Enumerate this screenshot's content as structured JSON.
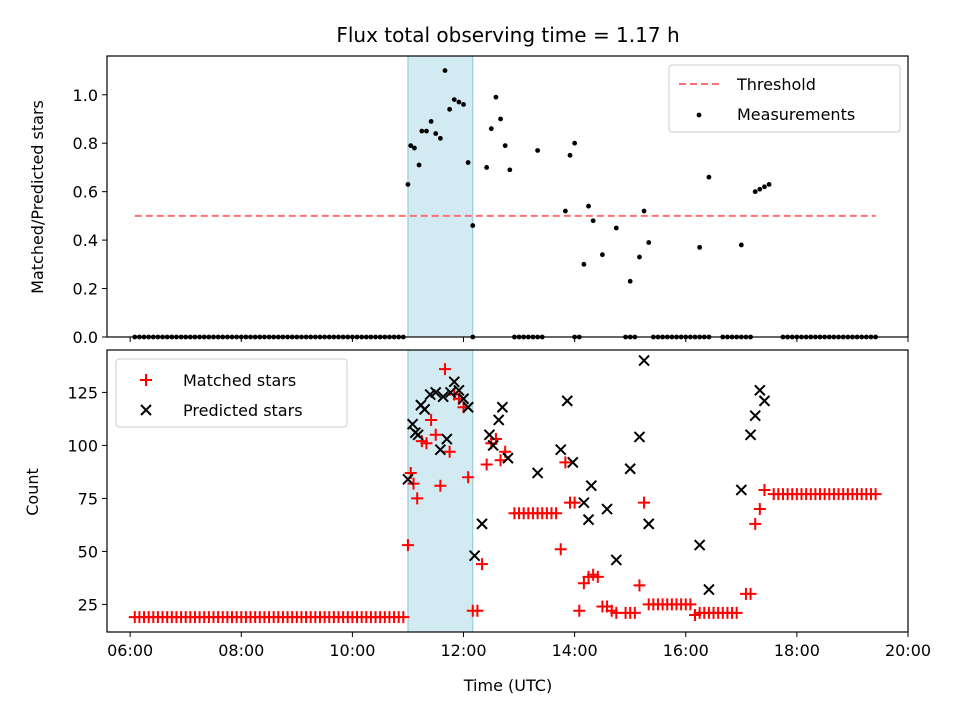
{
  "chart_data": {
    "title": "Flux total observing time = 1.17 h",
    "shared_x": {
      "xlabel": "Time (UTC)",
      "xlim": [
        "05:35",
        "20:00"
      ],
      "ticks": [
        "06:00",
        "08:00",
        "10:00",
        "12:00",
        "14:00",
        "16:00",
        "18:00",
        "20:00"
      ]
    },
    "highlight_interval": {
      "start": "11:00",
      "end": "12:10",
      "color": "#add8e6"
    },
    "panels": [
      {
        "id": "ratio",
        "type": "scatter",
        "ylabel": "Matched/Predicted stars",
        "ylim": [
          0,
          1.16
        ],
        "yticks": [
          "0.0",
          "0.2",
          "0.4",
          "0.6",
          "0.8",
          "1.0"
        ],
        "legend": {
          "placement": "upper right",
          "entries": [
            "Threshold",
            "Measurements"
          ]
        },
        "threshold": {
          "name": "Threshold",
          "value": 0.5,
          "x_range": [
            "06:05",
            "19:25"
          ],
          "color": "#ff7070",
          "style": "dashed"
        },
        "zero_series": {
          "name": "Measurements",
          "y": 0,
          "ranges": [
            [
              "06:05",
              "10:55"
            ],
            [
              "12:10",
              "12:10"
            ],
            [
              "12:55",
              "13:25"
            ],
            [
              "14:00",
              "14:05"
            ],
            [
              "14:55",
              "15:05"
            ],
            [
              "15:25",
              "16:25"
            ],
            [
              "16:40",
              "17:10"
            ],
            [
              "17:45",
              "19:25"
            ]
          ]
        },
        "series": [
          {
            "name": "Measurements",
            "color": "#000000",
            "marker": "dot",
            "points": [
              [
                "11:00",
                0.63
              ],
              [
                "11:03",
                0.79
              ],
              [
                "11:07",
                0.78
              ],
              [
                "11:12",
                0.71
              ],
              [
                "11:15",
                0.85
              ],
              [
                "11:20",
                0.85
              ],
              [
                "11:25",
                0.89
              ],
              [
                "11:30",
                0.84
              ],
              [
                "11:35",
                0.82
              ],
              [
                "11:40",
                1.1
              ],
              [
                "11:45",
                0.94
              ],
              [
                "11:50",
                0.98
              ],
              [
                "11:55",
                0.97
              ],
              [
                "12:00",
                0.96
              ],
              [
                "12:05",
                0.72
              ],
              [
                "12:10",
                0.46
              ],
              [
                "12:25",
                0.7
              ],
              [
                "12:30",
                0.86
              ],
              [
                "12:35",
                0.99
              ],
              [
                "12:40",
                0.9
              ],
              [
                "12:45",
                0.79
              ],
              [
                "12:50",
                0.69
              ],
              [
                "13:20",
                0.77
              ],
              [
                "13:50",
                0.52
              ],
              [
                "13:55",
                0.75
              ],
              [
                "14:00",
                0.8
              ],
              [
                "14:10",
                0.3
              ],
              [
                "14:15",
                0.54
              ],
              [
                "14:20",
                0.48
              ],
              [
                "14:30",
                0.34
              ],
              [
                "14:45",
                0.45
              ],
              [
                "15:00",
                0.23
              ],
              [
                "15:10",
                0.33
              ],
              [
                "15:15",
                0.52
              ],
              [
                "15:20",
                0.39
              ],
              [
                "16:15",
                0.37
              ],
              [
                "16:25",
                0.66
              ],
              [
                "17:00",
                0.38
              ],
              [
                "17:15",
                0.6
              ],
              [
                "17:20",
                0.61
              ],
              [
                "17:25",
                0.62
              ],
              [
                "17:30",
                0.63
              ]
            ]
          }
        ]
      },
      {
        "id": "counts",
        "type": "scatter",
        "ylabel": "Count",
        "ylim": [
          12,
          145
        ],
        "yticks": [
          "25",
          "50",
          "75",
          "100",
          "125"
        ],
        "legend": {
          "placement": "upper left",
          "entries": [
            "Matched stars",
            "Predicted stars"
          ]
        },
        "baseline_runs": [
          {
            "name": "Matched stars",
            "from": "06:05",
            "to": "10:55",
            "value": 19
          },
          {
            "name": "Matched stars",
            "from": "12:55",
            "to": "13:40",
            "value": 68
          },
          {
            "name": "Matched stars",
            "from": "14:55",
            "to": "15:05",
            "value": 21
          },
          {
            "name": "Matched stars",
            "from": "15:20",
            "to": "16:05",
            "value": 25
          },
          {
            "name": "Matched stars",
            "from": "16:15",
            "to": "16:55",
            "value": 21
          },
          {
            "name": "Matched stars",
            "from": "17:35",
            "to": "19:25",
            "value": 77
          }
        ],
        "series": [
          {
            "name": "Matched stars",
            "color": "#ff0000",
            "marker": "plus",
            "points": [
              [
                "11:00",
                53
              ],
              [
                "11:03",
                87
              ],
              [
                "11:06",
                82
              ],
              [
                "11:10",
                75
              ],
              [
                "11:15",
                102
              ],
              [
                "11:20",
                101
              ],
              [
                "11:25",
                112
              ],
              [
                "11:30",
                105
              ],
              [
                "11:35",
                81
              ],
              [
                "11:40",
                136
              ],
              [
                "11:45",
                97
              ],
              [
                "11:50",
                124
              ],
              [
                "11:55",
                122
              ],
              [
                "12:00",
                118
              ],
              [
                "12:05",
                85
              ],
              [
                "12:10",
                22
              ],
              [
                "12:15",
                22
              ],
              [
                "12:20",
                44
              ],
              [
                "12:25",
                91
              ],
              [
                "12:30",
                101
              ],
              [
                "12:35",
                103
              ],
              [
                "12:40",
                93
              ],
              [
                "12:45",
                97
              ],
              [
                "13:45",
                51
              ],
              [
                "13:50",
                92
              ],
              [
                "13:55",
                73
              ],
              [
                "14:00",
                73
              ],
              [
                "14:05",
                22
              ],
              [
                "14:10",
                35
              ],
              [
                "14:15",
                38
              ],
              [
                "14:20",
                39
              ],
              [
                "14:25",
                38
              ],
              [
                "14:30",
                24
              ],
              [
                "14:35",
                24
              ],
              [
                "14:40",
                22
              ],
              [
                "14:45",
                21
              ],
              [
                "15:10",
                34
              ],
              [
                "15:15",
                73
              ],
              [
                "16:10",
                20
              ],
              [
                "17:05",
                30
              ],
              [
                "17:10",
                30
              ],
              [
                "17:15",
                63
              ],
              [
                "17:20",
                70
              ],
              [
                "17:25",
                79
              ]
            ]
          },
          {
            "name": "Predicted stars",
            "color": "#000000",
            "marker": "x",
            "points": [
              [
                "11:00",
                84
              ],
              [
                "11:05",
                110
              ],
              [
                "11:08",
                106
              ],
              [
                "11:11",
                105
              ],
              [
                "11:14",
                119
              ],
              [
                "11:18",
                117
              ],
              [
                "11:24",
                124
              ],
              [
                "11:30",
                125
              ],
              [
                "11:35",
                98
              ],
              [
                "11:38",
                123
              ],
              [
                "11:42",
                103
              ],
              [
                "11:46",
                125
              ],
              [
                "11:50",
                130
              ],
              [
                "11:55",
                126
              ],
              [
                "12:00",
                122
              ],
              [
                "12:05",
                118
              ],
              [
                "12:12",
                48
              ],
              [
                "12:20",
                63
              ],
              [
                "12:28",
                105
              ],
              [
                "12:32",
                100
              ],
              [
                "12:38",
                112
              ],
              [
                "12:42",
                118
              ],
              [
                "12:48",
                94
              ],
              [
                "13:20",
                87
              ],
              [
                "13:45",
                98
              ],
              [
                "13:52",
                121
              ],
              [
                "13:58",
                92
              ],
              [
                "14:10",
                73
              ],
              [
                "14:15",
                65
              ],
              [
                "14:18",
                81
              ],
              [
                "14:35",
                70
              ],
              [
                "14:45",
                46
              ],
              [
                "15:00",
                89
              ],
              [
                "15:10",
                104
              ],
              [
                "15:15",
                140
              ],
              [
                "15:20",
                63
              ],
              [
                "16:15",
                53
              ],
              [
                "16:25",
                32
              ],
              [
                "17:00",
                79
              ],
              [
                "17:10",
                105
              ],
              [
                "17:15",
                114
              ],
              [
                "17:20",
                126
              ],
              [
                "17:25",
                121
              ]
            ]
          }
        ]
      }
    ]
  }
}
